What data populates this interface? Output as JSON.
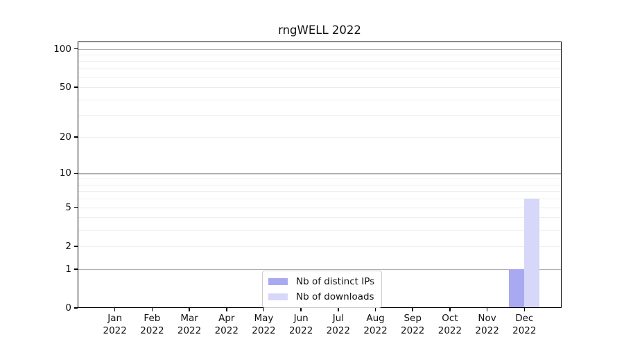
{
  "figure": {
    "background": "#ffffff",
    "axis_color": "#000000",
    "text_color": "#111111"
  },
  "chart_data": {
    "type": "bar",
    "title": "rngWELL 2022",
    "xlabel": "",
    "ylabel": "",
    "categories": [
      "Jan",
      "Feb",
      "Mar",
      "Apr",
      "May",
      "Jun",
      "Jul",
      "Aug",
      "Sep",
      "Oct",
      "Nov",
      "Dec"
    ],
    "year_label": "2022",
    "series": [
      {
        "name": "Nb of distinct IPs",
        "color": "#a9a9f2",
        "values": [
          0,
          0,
          0,
          0,
          0,
          0,
          0,
          0,
          0,
          0,
          0,
          1
        ]
      },
      {
        "name": "Nb of downloads",
        "color": "#d7d7fa",
        "values": [
          0,
          0,
          0,
          0,
          0,
          0,
          0,
          0,
          0,
          0,
          0,
          6
        ]
      }
    ],
    "yscale": "log1p",
    "ylim": [
      0,
      113
    ],
    "yticks": [
      0,
      1,
      2,
      5,
      10,
      20,
      50,
      100
    ],
    "grid": {
      "major_values": [
        1,
        10,
        100
      ],
      "minor_values": [
        2,
        3,
        4,
        5,
        6,
        7,
        8,
        9,
        20,
        30,
        40,
        50,
        60,
        70,
        80,
        90
      ],
      "major_color": "#b0b0b0",
      "minor_color": "#ededed"
    },
    "legend": {
      "position": "lower center",
      "entries": [
        "Nb of distinct IPs",
        "Nb of downloads"
      ]
    }
  }
}
